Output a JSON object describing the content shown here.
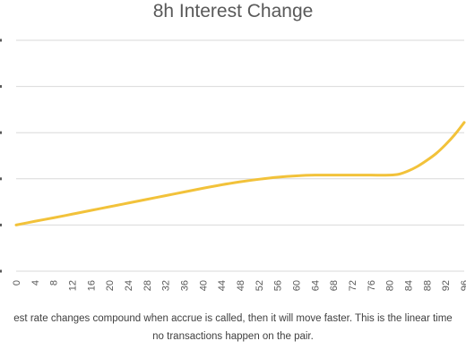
{
  "chart_data": {
    "type": "line",
    "title": "8h Interest Change",
    "xlabel": "",
    "ylabel": "",
    "x_ticks": [
      "0",
      "4",
      "8",
      "12",
      "16",
      "20",
      "24",
      "28",
      "32",
      "36",
      "40",
      "44",
      "48",
      "52",
      "56",
      "60",
      "64",
      "68",
      "72",
      "76",
      "80",
      "84",
      "88",
      "92",
      "96"
    ],
    "x": [
      0,
      4,
      8,
      12,
      16,
      20,
      24,
      28,
      32,
      36,
      40,
      44,
      48,
      52,
      56,
      60,
      64,
      68,
      72,
      76,
      80,
      82,
      84,
      86,
      88,
      90,
      92,
      94,
      96
    ],
    "series": [
      {
        "values": [
          1.0,
          1.08,
          1.155,
          1.235,
          1.315,
          1.395,
          1.475,
          1.555,
          1.635,
          1.715,
          1.795,
          1.87,
          1.935,
          1.99,
          2.035,
          2.065,
          2.08,
          2.08,
          2.08,
          2.08,
          2.08,
          2.1,
          2.17,
          2.27,
          2.4,
          2.55,
          2.74,
          2.96,
          3.22
        ],
        "color": "#F2C23A"
      }
    ],
    "xlim": [
      0,
      96
    ],
    "ylim": [
      0,
      5
    ],
    "grid": true,
    "legend": "none"
  },
  "caption": {
    "line1": "est rate changes compound when accrue is called, then it will move faster. This is the linear time",
    "line2": "no transactions happen on the pair."
  },
  "colors": {
    "line": "#F2C23A",
    "grid": "#D9D9D9",
    "text": "#595959"
  }
}
